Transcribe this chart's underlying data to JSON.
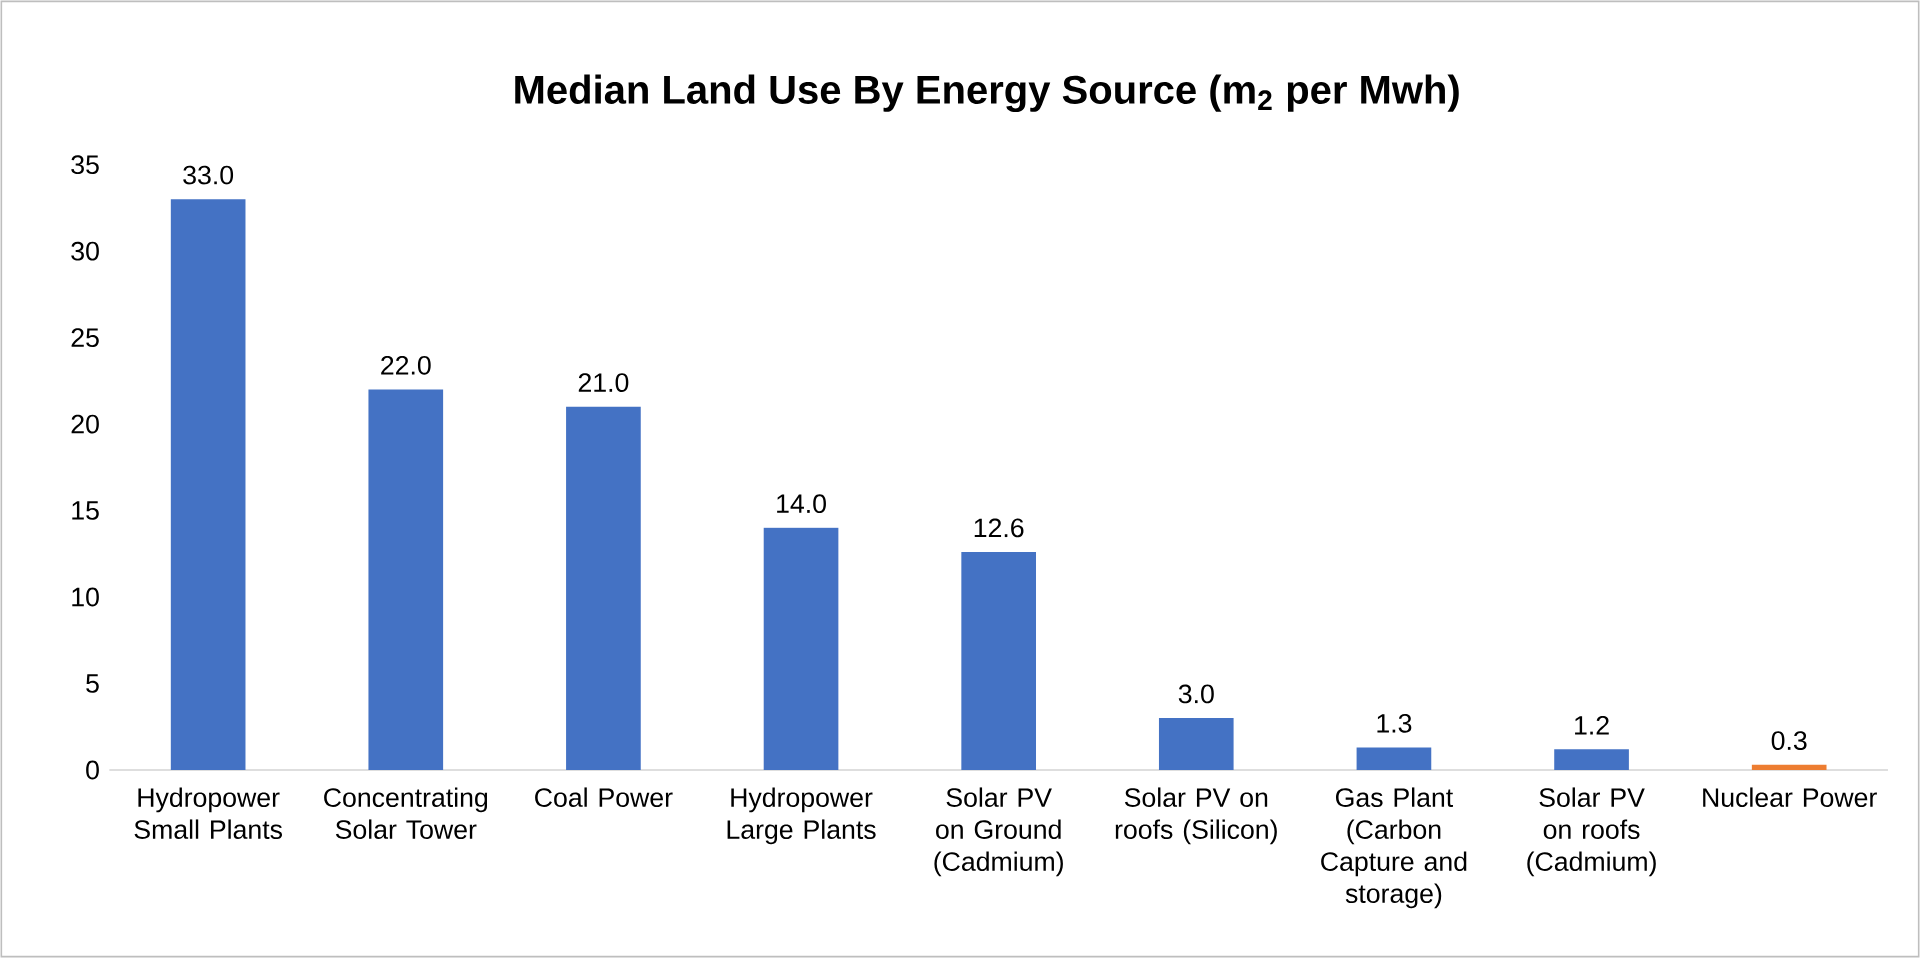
{
  "chart_data": {
    "type": "bar",
    "title": "Median Land Use By Energy Source (m$_{2}$ per Mwh)",
    "categories": [
      "Hydropower Small Plants",
      "Concentrating Solar Tower",
      "Coal Power",
      "Hydropower Large Plants",
      "Solar PV on Ground (Cadmium)",
      "Solar PV on roofs (Silicon)",
      "Gas Plant (Carbon Capture and storage)",
      "Solar PV on roofs (Cadmium)",
      "Nuclear Power"
    ],
    "values": [
      33.0,
      22.0,
      21.0,
      14.0,
      12.6,
      3.0,
      1.3,
      1.2,
      0.3
    ],
    "value_labels": [
      "33.0",
      "22.0",
      "21.0",
      "14.0",
      "12.6",
      "3.0",
      "1.3",
      "1.2",
      "0.3"
    ],
    "colors": [
      "#4472c4",
      "#4472c4",
      "#4472c4",
      "#4472c4",
      "#4472c4",
      "#4472c4",
      "#4472c4",
      "#4472c4",
      "#ed7d31"
    ],
    "ylim": [
      0,
      35
    ],
    "yticks": [
      0,
      5,
      10,
      15,
      20,
      25,
      30,
      35
    ]
  }
}
